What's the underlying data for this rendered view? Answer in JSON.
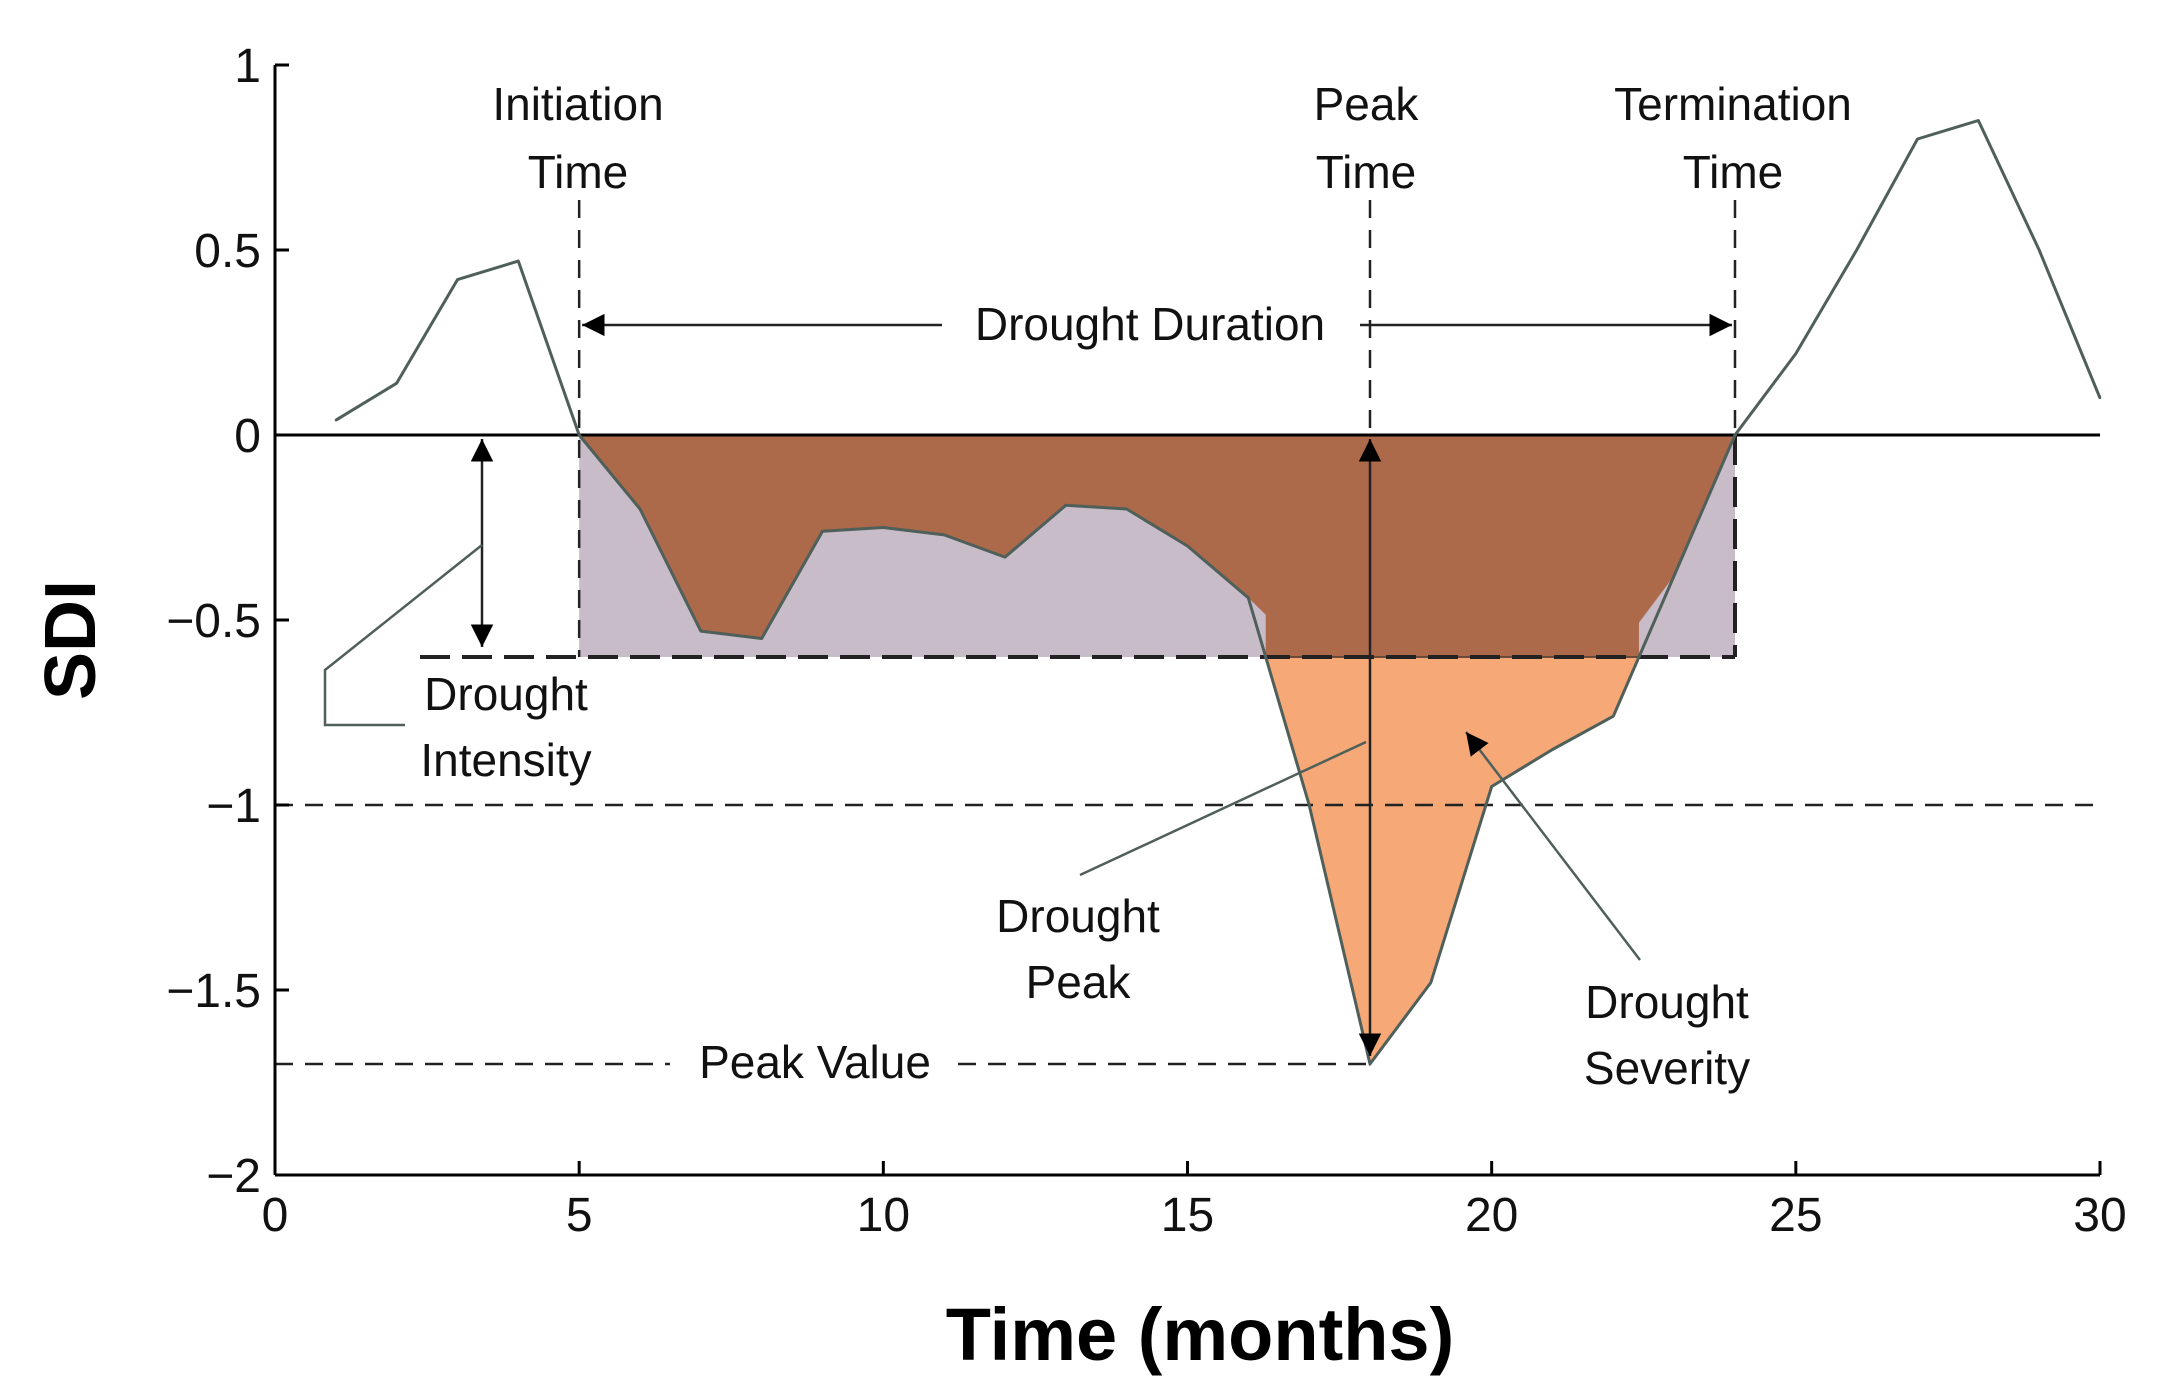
{
  "chart_data": {
    "type": "area",
    "title": "",
    "xlabel": "Time (months)",
    "ylabel": "SDI",
    "xlim": [
      0,
      30
    ],
    "ylim": [
      -2,
      1
    ],
    "xticks": [
      0,
      5,
      10,
      15,
      20,
      25,
      30
    ],
    "xtick_labels": [
      "0",
      "5",
      "10",
      "15",
      "20",
      "25",
      "30"
    ],
    "yticks": [
      1,
      0.5,
      0,
      -0.5,
      -1,
      -1.5,
      -2
    ],
    "ytick_labels": [
      "1",
      "0.5",
      "0",
      "−0.5",
      "−1",
      "−1.5",
      "−2"
    ],
    "grid": false,
    "series": [
      {
        "name": "SDI",
        "x": [
          1,
          2,
          3,
          4,
          5,
          6,
          7,
          8,
          9,
          10,
          11,
          12,
          13,
          14,
          15,
          16,
          17,
          18,
          19,
          20,
          21,
          22,
          23,
          24,
          25,
          26,
          27,
          28,
          29,
          30
        ],
        "y": [
          0.04,
          0.14,
          0.42,
          0.47,
          0.0,
          -0.2,
          -0.53,
          -0.55,
          -0.26,
          -0.25,
          -0.27,
          -0.33,
          -0.19,
          -0.2,
          -0.3,
          -0.44,
          -1.0,
          -1.7,
          -1.48,
          -0.95,
          -0.85,
          -0.76,
          -0.38,
          0.0,
          0.22,
          0.5,
          0.8,
          0.85,
          0.5,
          0.1
        ]
      }
    ],
    "threshold_levels": {
      "zero": 0,
      "drought_intensity": -0.6,
      "severe": -1.0,
      "peak_value": -1.7
    },
    "event_times": {
      "initiation": 5,
      "peak": 18,
      "termination": 24
    },
    "colors": {
      "line": "#4f5f5a",
      "below_zero_fill": "#ad6a4b",
      "below_intensity_fill": "#f6a877",
      "intensity_box_fill": "#c7bcc8",
      "axis": "#000000"
    },
    "annotations": {
      "initiation_time": [
        "Initiation",
        "Time"
      ],
      "peak_time": [
        "Peak",
        "Time"
      ],
      "termination_time": [
        "Termination",
        "Time"
      ],
      "drought_duration": "Drought Duration",
      "drought_intensity": [
        "Drought",
        "Intensity"
      ],
      "drought_peak": [
        "Drought",
        "Peak"
      ],
      "drought_severity": [
        "Drought",
        "Severity"
      ],
      "peak_value": "Peak Value"
    }
  }
}
